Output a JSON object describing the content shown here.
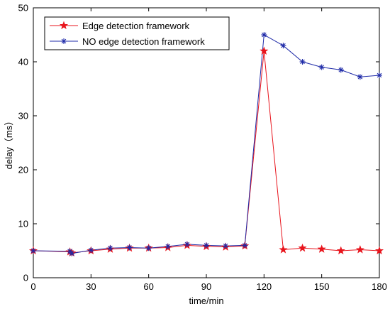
{
  "chart_data": {
    "type": "line",
    "xlabel": "time/min",
    "ylabel": "delay（ms）",
    "xlim": [
      0,
      180
    ],
    "ylim": [
      0,
      50
    ],
    "xticks": [
      0,
      30,
      60,
      90,
      120,
      150,
      180
    ],
    "yticks": [
      0,
      10,
      20,
      30,
      40,
      50
    ],
    "grid": false,
    "legend_position": "top-left",
    "series": [
      {
        "name": "Edge detection framework",
        "color": "#e8141c",
        "marker": "star",
        "x": [
          0,
          19,
          20,
          30,
          40,
          50,
          60,
          70,
          80,
          90,
          100,
          110,
          120,
          130,
          140,
          150,
          160,
          170,
          180
        ],
        "y": [
          5.0,
          4.8,
          4.6,
          5.0,
          5.3,
          5.5,
          5.5,
          5.6,
          6.0,
          5.8,
          5.7,
          5.9,
          42.0,
          5.2,
          5.5,
          5.3,
          5.0,
          5.2,
          5.0
        ]
      },
      {
        "name": "NO edge detection framework",
        "color": "#1f2ba8",
        "marker": "asterisk",
        "x": [
          0,
          19,
          20,
          30,
          40,
          50,
          60,
          70,
          80,
          90,
          100,
          110,
          120,
          130,
          140,
          150,
          160,
          170,
          180
        ],
        "y": [
          5.0,
          4.9,
          4.5,
          5.1,
          5.5,
          5.6,
          5.5,
          5.8,
          6.2,
          6.0,
          5.9,
          6.0,
          45.0,
          43.0,
          40.0,
          39.0,
          38.5,
          37.2,
          37.5
        ]
      }
    ]
  }
}
